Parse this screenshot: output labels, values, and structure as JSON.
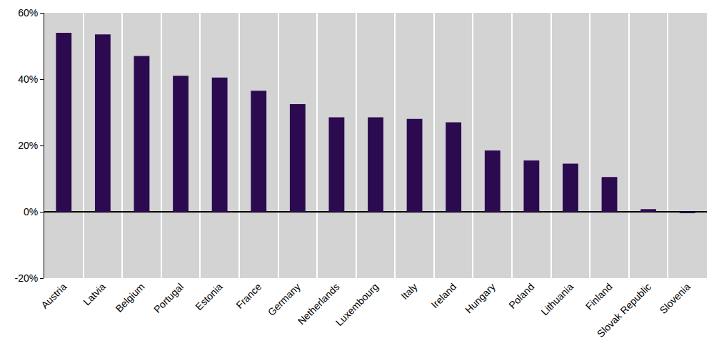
{
  "chart_data": {
    "type": "bar",
    "categories": [
      "Austria",
      "Latvia",
      "Belgium",
      "Portugal",
      "Estonia",
      "France",
      "Germany",
      "Netherlands",
      "Luxembourg",
      "Italy",
      "Ireland",
      "Hungary",
      "Poland",
      "Lithuania",
      "Finland",
      "Slovak Republic",
      "Slovenia"
    ],
    "values": [
      54,
      53.5,
      47,
      41,
      40.5,
      36.5,
      32.5,
      28.5,
      28.5,
      28,
      27,
      18.5,
      15.5,
      14.5,
      10.5,
      0.8,
      -0.3
    ],
    "color": "#2b0a4f",
    "ylim": [
      -20,
      60
    ],
    "yticks": [
      {
        "value": -20,
        "label": "-20%"
      },
      {
        "value": 0,
        "label": "0%"
      },
      {
        "value": 20,
        "label": "20%"
      },
      {
        "value": 40,
        "label": "40%"
      },
      {
        "value": 60,
        "label": "60%"
      }
    ],
    "grid": true
  }
}
